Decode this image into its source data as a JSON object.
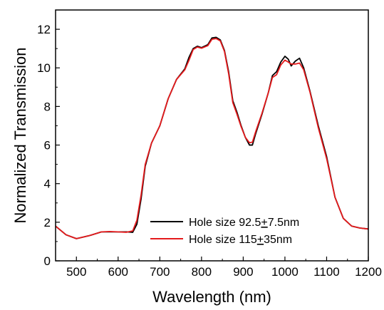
{
  "chart_data": {
    "type": "line",
    "title": "",
    "xlabel": "Wavelength (nm)",
    "ylabel": "Normalized Transmission",
    "xlim": [
      450,
      1200
    ],
    "ylim": [
      0,
      13
    ],
    "xticks": [
      500,
      600,
      700,
      800,
      900,
      1000,
      1100,
      1200
    ],
    "yticks": [
      0,
      2,
      4,
      6,
      8,
      10,
      12
    ],
    "grid": false,
    "legend_position": "bottom-right",
    "series": [
      {
        "name": "Hole size 92.5±7.5nm",
        "label_parts": [
          "Hole size 92.5",
          "+",
          "7.5nm"
        ],
        "color": "#000000",
        "x": [
          450,
          475,
          500,
          530,
          560,
          580,
          600,
          620,
          635,
          645,
          655,
          665,
          680,
          700,
          720,
          740,
          760,
          770,
          780,
          790,
          800,
          815,
          825,
          835,
          845,
          855,
          865,
          875,
          885,
          895,
          905,
          915,
          922,
          930,
          945,
          960,
          970,
          980,
          990,
          1000,
          1008,
          1015,
          1025,
          1035,
          1045,
          1060,
          1080,
          1100,
          1120,
          1140,
          1160,
          1180,
          1200
        ],
        "y": [
          1.8,
          1.35,
          1.15,
          1.3,
          1.5,
          1.5,
          1.5,
          1.5,
          1.48,
          1.9,
          3.2,
          4.9,
          6.1,
          7.0,
          8.4,
          9.4,
          9.95,
          10.55,
          11.0,
          11.12,
          11.05,
          11.2,
          11.55,
          11.58,
          11.45,
          10.9,
          9.8,
          8.3,
          7.7,
          7.0,
          6.4,
          6.0,
          6.0,
          6.6,
          7.6,
          8.7,
          9.6,
          9.8,
          10.3,
          10.6,
          10.45,
          10.1,
          10.35,
          10.5,
          10.0,
          8.8,
          7.0,
          5.4,
          3.3,
          2.2,
          1.8,
          1.7,
          1.65
        ]
      },
      {
        "name": "Hole size 115±35nm",
        "label_parts": [
          "Hole size 115",
          "+",
          "35nm"
        ],
        "color": "#e41a1c",
        "x": [
          450,
          475,
          500,
          530,
          560,
          580,
          600,
          620,
          635,
          645,
          655,
          665,
          680,
          700,
          720,
          740,
          760,
          770,
          780,
          790,
          800,
          815,
          825,
          835,
          845,
          855,
          865,
          875,
          885,
          895,
          905,
          915,
          922,
          930,
          945,
          960,
          970,
          980,
          990,
          1000,
          1008,
          1015,
          1025,
          1035,
          1045,
          1060,
          1080,
          1100,
          1120,
          1140,
          1160,
          1180,
          1200
        ],
        "y": [
          1.8,
          1.35,
          1.15,
          1.3,
          1.5,
          1.52,
          1.5,
          1.48,
          1.55,
          2.1,
          3.4,
          5.0,
          6.1,
          7.0,
          8.4,
          9.4,
          9.9,
          10.4,
          10.95,
          11.08,
          11.02,
          11.15,
          11.48,
          11.52,
          11.4,
          10.85,
          9.7,
          8.2,
          7.6,
          6.95,
          6.4,
          6.12,
          6.15,
          6.7,
          7.65,
          8.7,
          9.5,
          9.65,
          10.15,
          10.4,
          10.3,
          10.2,
          10.2,
          10.25,
          9.9,
          8.75,
          6.9,
          5.3,
          3.3,
          2.2,
          1.8,
          1.7,
          1.65
        ]
      }
    ]
  }
}
